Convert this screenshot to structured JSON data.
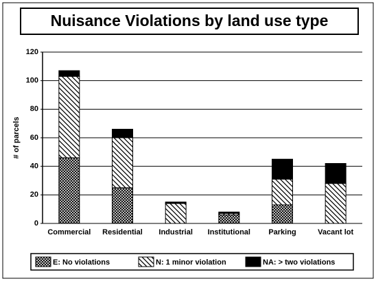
{
  "chart_data": {
    "type": "stacked_bar",
    "title": "Nuisance Violations by land use type",
    "ylabel": "# of parcels",
    "categories": [
      "Commercial",
      "Residential",
      "Industrial",
      "Institutional",
      "Parking",
      "Vacant lot"
    ],
    "series": [
      {
        "name": "E: No violations",
        "color": "#000000",
        "pattern": "crosshatch",
        "values": [
          46,
          25,
          0,
          6,
          13,
          0
        ]
      },
      {
        "name": "N: 1 minor violation",
        "color": "#000000",
        "pattern": "diagonal",
        "values": [
          57,
          35,
          14,
          1,
          18,
          28
        ]
      },
      {
        "name": "NA: > two violations",
        "color": "#000000",
        "pattern": "solid",
        "values": [
          4,
          6,
          1,
          1,
          14,
          14
        ]
      }
    ],
    "ylim": [
      0,
      120
    ],
    "yticks": [
      0,
      20,
      40,
      60,
      80,
      100,
      120
    ],
    "grid": true,
    "legend": "bottom"
  }
}
